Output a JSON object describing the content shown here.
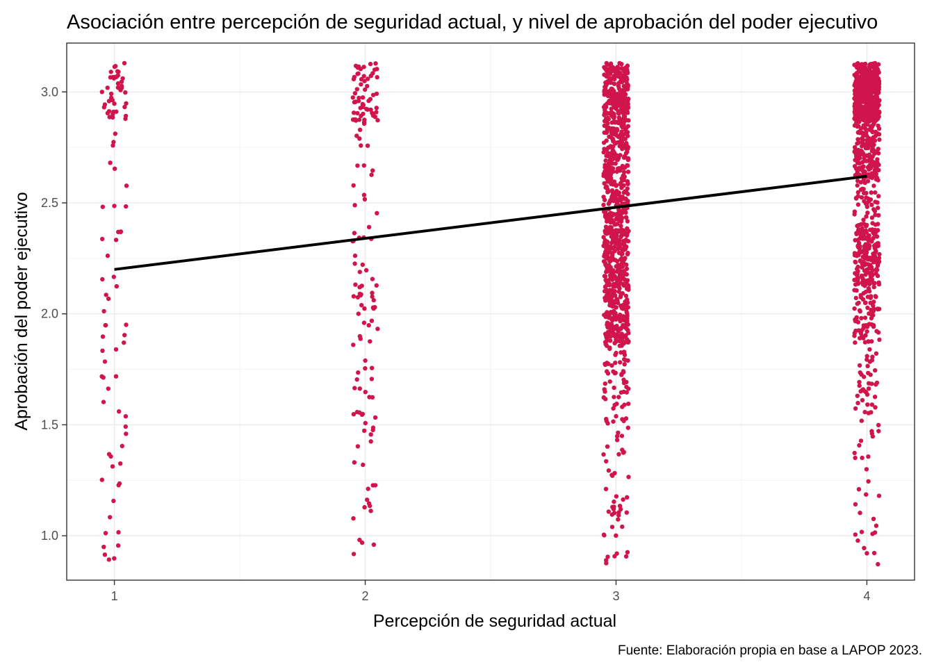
{
  "chart_data": {
    "type": "scatter",
    "title": "Asociación entre percepción de seguridad actual, y nivel de aprobación del poder ejecutivo",
    "xlabel": "Percepción de seguridad actual",
    "ylabel": "Aprobación del poder ejecutivo",
    "caption": "Fuente: Elaboración propia en base a LAPOP 2023.",
    "x_ticks": [
      1,
      2,
      3,
      4
    ],
    "x_tick_labels": [
      "1",
      "2",
      "3",
      "4"
    ],
    "y_ticks": [
      1.0,
      1.5,
      2.0,
      2.5,
      3.0
    ],
    "y_tick_labels": [
      "1.0",
      "1.5",
      "2.0",
      "2.5",
      "3.0"
    ],
    "xlim": [
      0.81,
      4.19
    ],
    "ylim": [
      0.8,
      3.22
    ],
    "grid": true,
    "point_color": "#D0144C",
    "line_color": "#000000",
    "jitter": {
      "x": 0.05,
      "y": 0.13
    },
    "series": [
      {
        "type": "scatter",
        "note": "jittered counts of respondents per (seguridad, aprobacion) level",
        "groups": [
          {
            "x": 1,
            "counts": {
              "1": 8,
              "1.25": 8,
              "1.5": 6,
              "1.75": 7,
              "2": 10,
              "2.25": 8,
              "2.5": 4,
              "2.75": 6,
              "3": 40
            }
          },
          {
            "x": 2,
            "counts": {
              "1": 7,
              "1.25": 8,
              "1.5": 13,
              "1.75": 12,
              "2": 24,
              "2.25": 14,
              "2.5": 6,
              "2.75": 12,
              "3": 60
            }
          },
          {
            "x": 3,
            "counts": {
              "1": 20,
              "1.25": 18,
              "1.5": 25,
              "1.75": 50,
              "2": 180,
              "2.25": 200,
              "2.5": 150,
              "2.75": 180,
              "3": 230
            }
          },
          {
            "x": 4,
            "counts": {
              "1": 12,
              "1.25": 10,
              "1.5": 18,
              "1.75": 30,
              "2": 70,
              "2.25": 170,
              "2.5": 70,
              "2.75": 160,
              "3": 500
            }
          }
        ]
      },
      {
        "type": "line",
        "x": [
          1,
          4
        ],
        "y": [
          2.2,
          2.62
        ]
      }
    ]
  }
}
